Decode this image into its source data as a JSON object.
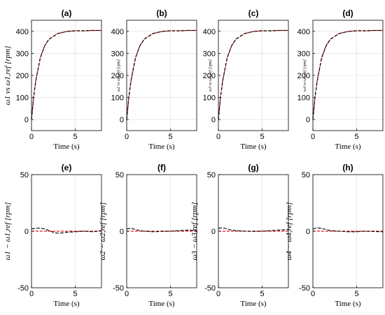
{
  "chart_data": [
    {
      "type": "line",
      "title": "(a)",
      "xlabel": "Time (s)",
      "ylabel": "ω1 vs ω1,ref [rpm]",
      "xlim": [
        0,
        8
      ],
      "ylim": [
        -50,
        450
      ],
      "xticks": [
        0,
        5
      ],
      "yticks": [
        0,
        100,
        200,
        300,
        400
      ],
      "grid": true,
      "series": [
        {
          "x": [
            0,
            0.25,
            0.5,
            1,
            1.5,
            2,
            3,
            4,
            5,
            6,
            7,
            8
          ],
          "values": [
            0,
            105,
            180,
            280,
            335,
            365,
            390,
            399,
            402,
            403,
            404,
            404
          ],
          "color": "#e41a1c"
        },
        {
          "x": [
            0,
            0.25,
            0.5,
            1,
            1.5,
            2,
            3,
            4,
            5,
            6,
            7,
            8
          ],
          "values": [
            0,
            103,
            178,
            279,
            334,
            364,
            390,
            399,
            403,
            402,
            404,
            404
          ],
          "color": "#000000"
        }
      ]
    },
    {
      "type": "line",
      "title": "(b)",
      "xlabel": "Time (s)",
      "ylabel": "ω2 vs ω2,ref [rpm]",
      "xlim": [
        0,
        8
      ],
      "ylim": [
        -50,
        450
      ],
      "xticks": [
        0,
        5
      ],
      "yticks": [
        0,
        100,
        200,
        300,
        400
      ],
      "grid": true,
      "series": [
        {
          "x": [
            0,
            0.25,
            0.5,
            1,
            1.5,
            2,
            3,
            4,
            5,
            6,
            7,
            8
          ],
          "values": [
            0,
            105,
            180,
            280,
            335,
            365,
            390,
            399,
            402,
            403,
            404,
            404
          ],
          "color": "#e41a1c"
        },
        {
          "x": [
            0,
            0.25,
            0.5,
            1,
            1.5,
            2,
            3,
            4,
            5,
            6,
            7,
            8
          ],
          "values": [
            0,
            103,
            178,
            279,
            334,
            364,
            390,
            399,
            403,
            402,
            404,
            404
          ],
          "color": "#000000"
        }
      ]
    },
    {
      "type": "line",
      "title": "(c)",
      "xlabel": "Time (s)",
      "ylabel": "ω3 vs ω3,ref [rpm]",
      "xlim": [
        0,
        8
      ],
      "ylim": [
        -50,
        450
      ],
      "xticks": [
        0,
        5
      ],
      "yticks": [
        0,
        100,
        200,
        300,
        400
      ],
      "grid": true,
      "series": [
        {
          "x": [
            0,
            0.25,
            0.5,
            1,
            1.5,
            2,
            3,
            4,
            5,
            6,
            7,
            8
          ],
          "values": [
            0,
            105,
            180,
            280,
            335,
            365,
            390,
            399,
            402,
            403,
            404,
            404
          ],
          "color": "#e41a1c"
        },
        {
          "x": [
            0,
            0.25,
            0.5,
            1,
            1.5,
            2,
            3,
            4,
            5,
            6,
            7,
            8
          ],
          "values": [
            0,
            103,
            178,
            279,
            334,
            364,
            390,
            399,
            403,
            402,
            404,
            404
          ],
          "color": "#000000"
        }
      ]
    },
    {
      "type": "line",
      "title": "(d)",
      "xlabel": "Time (s)",
      "ylabel": "ω4 vs ω4,ref [rpm]",
      "xlim": [
        0,
        8
      ],
      "ylim": [
        -50,
        450
      ],
      "xticks": [
        0,
        5
      ],
      "yticks": [
        0,
        100,
        200,
        300,
        400
      ],
      "grid": true,
      "series": [
        {
          "x": [
            0,
            0.25,
            0.5,
            1,
            1.5,
            2,
            3,
            4,
            5,
            6,
            7,
            8
          ],
          "values": [
            0,
            105,
            180,
            280,
            335,
            365,
            390,
            399,
            402,
            403,
            404,
            404
          ],
          "color": "#e41a1c"
        },
        {
          "x": [
            0,
            0.25,
            0.5,
            1,
            1.5,
            2,
            3,
            4,
            5,
            6,
            7,
            8
          ],
          "values": [
            0,
            103,
            178,
            279,
            334,
            364,
            390,
            399,
            403,
            402,
            404,
            404
          ],
          "color": "#000000"
        }
      ]
    },
    {
      "type": "line",
      "title": "(e)",
      "xlabel": "Time (s)",
      "ylabel": "ω1 − ω1,ref [rpm]",
      "xlim": [
        0,
        8
      ],
      "ylim": [
        -50,
        50
      ],
      "xticks": [
        0,
        5
      ],
      "yticks": [
        -50,
        0,
        50
      ],
      "grid": true,
      "series": [
        {
          "x": [
            0,
            8
          ],
          "values": [
            0,
            0
          ],
          "color": "#e41a1c"
        },
        {
          "x": [
            0,
            0.5,
            1,
            1.5,
            2,
            2.5,
            3,
            3.5,
            4,
            5,
            6,
            7,
            8
          ],
          "values": [
            2,
            2.5,
            2.8,
            2,
            0.5,
            -1,
            -1.8,
            -1.5,
            -1,
            -0.5,
            0,
            -0.5,
            0.5
          ],
          "color": "#000000"
        }
      ]
    },
    {
      "type": "line",
      "title": "(f)",
      "xlabel": "Time (s)",
      "ylabel": "ω2 − ω2,ref [rpm]",
      "xlim": [
        0,
        8
      ],
      "ylim": [
        -50,
        50
      ],
      "xticks": [
        0,
        5
      ],
      "yticks": [
        -50,
        0,
        50
      ],
      "grid": true,
      "series": [
        {
          "x": [
            0,
            8
          ],
          "values": [
            0,
            0
          ],
          "color": "#e41a1c"
        },
        {
          "x": [
            0,
            0.5,
            1,
            1.5,
            2,
            3,
            4,
            5,
            6,
            7,
            8
          ],
          "values": [
            2,
            2.5,
            1.5,
            0.5,
            0,
            -0.5,
            -0.2,
            0,
            0.5,
            1,
            0.5
          ],
          "color": "#000000"
        }
      ]
    },
    {
      "type": "line",
      "title": "(g)",
      "xlabel": "Time (s)",
      "ylabel": "ω3 − ω3,ref [rpm]",
      "xlim": [
        0,
        8
      ],
      "ylim": [
        -50,
        50
      ],
      "xticks": [
        0,
        5
      ],
      "yticks": [
        -50,
        0,
        50
      ],
      "grid": true,
      "series": [
        {
          "x": [
            0,
            8
          ],
          "values": [
            0,
            0
          ],
          "color": "#e41a1c"
        },
        {
          "x": [
            0,
            0.5,
            1,
            1.5,
            2,
            3,
            4,
            5,
            6,
            7,
            8
          ],
          "values": [
            2.5,
            3,
            2,
            1,
            0.5,
            0,
            -0.2,
            0,
            0.5,
            1,
            1.5
          ],
          "color": "#000000"
        }
      ]
    },
    {
      "type": "line",
      "title": "(h)",
      "xlabel": "Time (s)",
      "ylabel": "ω4 − ω4,ref [rpm]",
      "xlim": [
        0,
        8
      ],
      "ylim": [
        -50,
        50
      ],
      "xticks": [
        0,
        5
      ],
      "yticks": [
        -50,
        0,
        50
      ],
      "grid": true,
      "series": [
        {
          "x": [
            0,
            8
          ],
          "values": [
            0,
            0
          ],
          "color": "#e41a1c"
        },
        {
          "x": [
            0,
            0.5,
            1,
            1.5,
            2,
            3,
            4,
            5,
            6,
            7,
            8
          ],
          "values": [
            2,
            3,
            2.5,
            1.5,
            0.5,
            0,
            -0.5,
            -0.5,
            0,
            -0.3,
            -0.5
          ],
          "color": "#000000"
        }
      ]
    }
  ]
}
